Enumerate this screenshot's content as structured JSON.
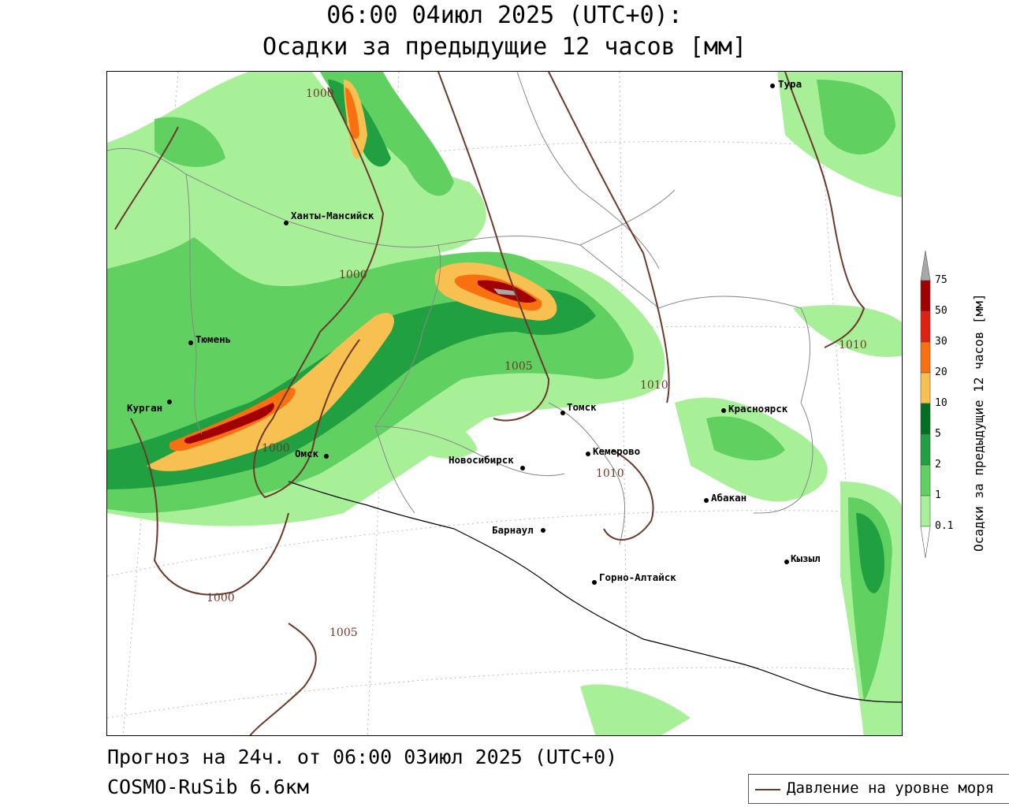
{
  "title": {
    "line1": "06:00 04июл 2025 (UTC+0):",
    "line2": "Осадки за предыдущие 12 часов [мм]"
  },
  "footer": {
    "forecast": "Прогноз на 24ч. от 06:00 03июл 2025 (UTC+0)",
    "model": "COSMO-RuSib 6.6км"
  },
  "legend": {
    "pressure_label": "Давление на уровне моря"
  },
  "colorbar": {
    "title": "Осадки за предыдущие 12 часов [мм]",
    "ticks": [
      "75",
      "50",
      "30",
      "20",
      "10",
      "5",
      "2",
      "1",
      "0.1"
    ],
    "colors": [
      "#a8a8a8",
      "#a00000",
      "#e02010",
      "#f87010",
      "#f8c050",
      "#007020",
      "#20a040",
      "#60d060",
      "#a8f098"
    ]
  },
  "cities": [
    {
      "name": "Тура"
    },
    {
      "name": "Ханты-Мансийск"
    },
    {
      "name": "Тюмень"
    },
    {
      "name": "Курган"
    },
    {
      "name": "Омск"
    },
    {
      "name": "Томск"
    },
    {
      "name": "Красноярск"
    },
    {
      "name": "Кемерово"
    },
    {
      "name": "Новосибирск"
    },
    {
      "name": "Абакан"
    },
    {
      "name": "Барнаул"
    },
    {
      "name": "Кызыл"
    },
    {
      "name": "Горно-Алтайск"
    }
  ],
  "isobars": [
    "1000",
    "1000",
    "1005",
    "1010",
    "1010",
    "1010",
    "1000",
    "1000",
    "1005"
  ]
}
